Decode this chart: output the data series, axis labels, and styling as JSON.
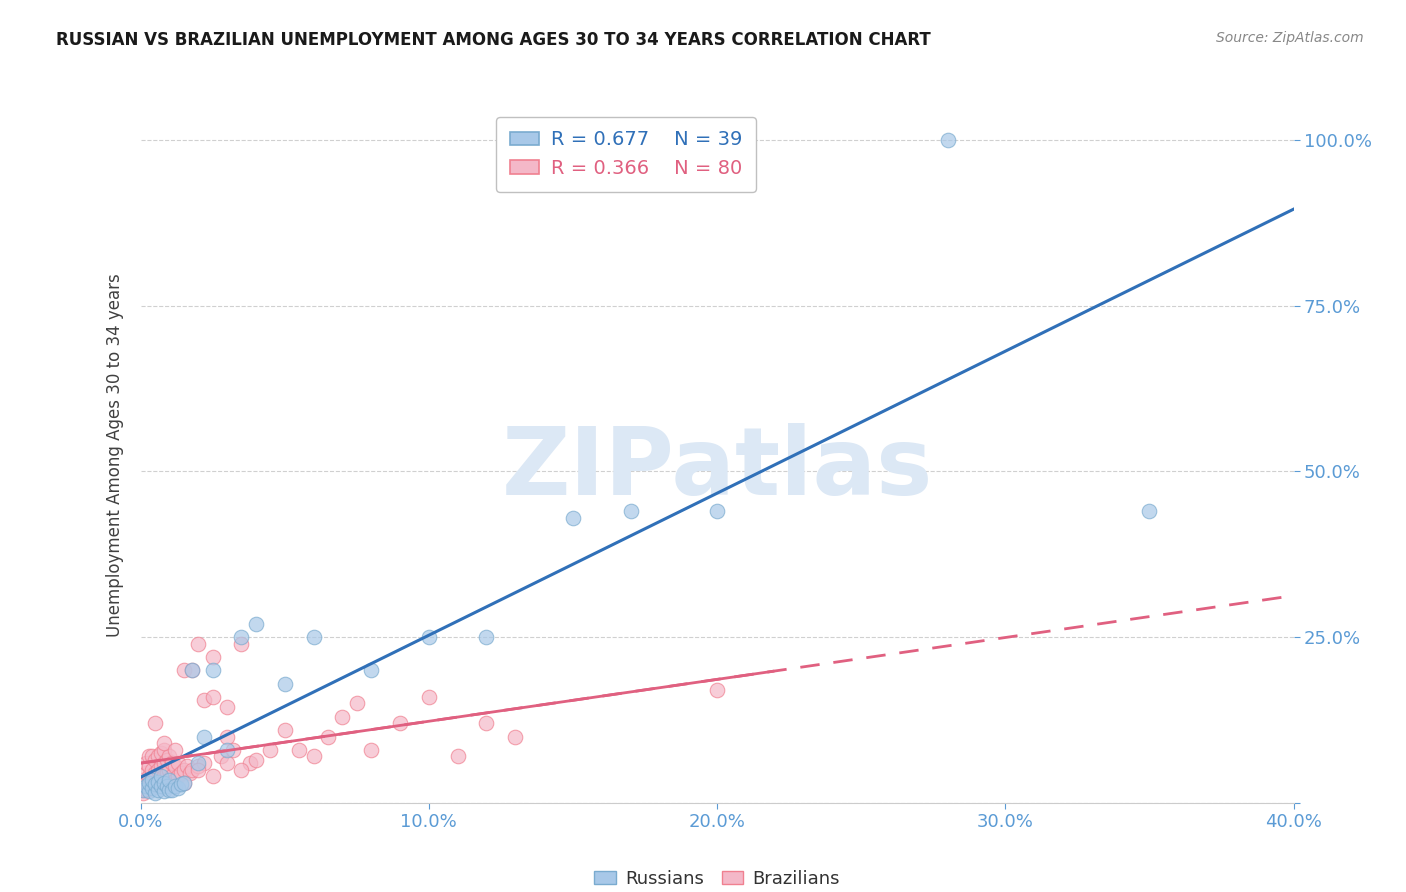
{
  "title": "RUSSIAN VS BRAZILIAN UNEMPLOYMENT AMONG AGES 30 TO 34 YEARS CORRELATION CHART",
  "source": "Source: ZipAtlas.com",
  "xmin": 0.0,
  "xmax": 0.4,
  "ymin": 0.0,
  "ymax": 1.05,
  "ylabel": "Unemployment Among Ages 30 to 34 years",
  "russian_R": 0.677,
  "russian_N": 39,
  "brazilian_R": 0.366,
  "brazilian_N": 80,
  "russian_color": "#a8c8e8",
  "russian_edge_color": "#7aabcf",
  "brazilian_color": "#f4b8c8",
  "brazilian_edge_color": "#f08090",
  "russian_line_color": "#3070b8",
  "brazilian_line_color": "#e06080",
  "watermark_text": "ZIPatlas",
  "watermark_color": "#dce8f5",
  "title_fontsize": 12,
  "source_fontsize": 10,
  "tick_color": "#5b9bd5",
  "grid_color": "#d0d0d0",
  "ylabel_color": "#404040",
  "russian_x": [
    0.001,
    0.002,
    0.003,
    0.003,
    0.004,
    0.004,
    0.005,
    0.005,
    0.006,
    0.006,
    0.007,
    0.007,
    0.008,
    0.008,
    0.009,
    0.01,
    0.01,
    0.011,
    0.012,
    0.013,
    0.014,
    0.015,
    0.018,
    0.02,
    0.022,
    0.025,
    0.03,
    0.035,
    0.04,
    0.05,
    0.06,
    0.08,
    0.1,
    0.12,
    0.15,
    0.17,
    0.2,
    0.28,
    0.35
  ],
  "russian_y": [
    0.02,
    0.025,
    0.018,
    0.03,
    0.022,
    0.035,
    0.015,
    0.028,
    0.02,
    0.032,
    0.025,
    0.04,
    0.018,
    0.03,
    0.025,
    0.02,
    0.035,
    0.02,
    0.025,
    0.022,
    0.028,
    0.03,
    0.2,
    0.06,
    0.1,
    0.2,
    0.08,
    0.25,
    0.27,
    0.18,
    0.25,
    0.2,
    0.25,
    0.25,
    0.43,
    0.44,
    0.44,
    1.0,
    0.44
  ],
  "brazilian_x": [
    0.0005,
    0.001,
    0.001,
    0.001,
    0.002,
    0.002,
    0.002,
    0.002,
    0.003,
    0.003,
    0.003,
    0.003,
    0.004,
    0.004,
    0.004,
    0.005,
    0.005,
    0.005,
    0.006,
    0.006,
    0.006,
    0.007,
    0.007,
    0.007,
    0.008,
    0.008,
    0.008,
    0.009,
    0.009,
    0.01,
    0.01,
    0.01,
    0.011,
    0.011,
    0.012,
    0.012,
    0.013,
    0.013,
    0.014,
    0.015,
    0.015,
    0.016,
    0.017,
    0.018,
    0.018,
    0.02,
    0.02,
    0.022,
    0.022,
    0.025,
    0.025,
    0.028,
    0.03,
    0.03,
    0.032,
    0.035,
    0.038,
    0.04,
    0.045,
    0.05,
    0.055,
    0.06,
    0.065,
    0.07,
    0.075,
    0.08,
    0.09,
    0.1,
    0.11,
    0.12,
    0.13,
    0.005,
    0.008,
    0.012,
    0.015,
    0.02,
    0.025,
    0.03,
    0.035,
    0.2
  ],
  "brazilian_y": [
    0.02,
    0.015,
    0.025,
    0.035,
    0.02,
    0.03,
    0.045,
    0.06,
    0.025,
    0.04,
    0.055,
    0.07,
    0.03,
    0.05,
    0.07,
    0.025,
    0.045,
    0.065,
    0.03,
    0.05,
    0.07,
    0.035,
    0.055,
    0.075,
    0.04,
    0.06,
    0.08,
    0.045,
    0.065,
    0.03,
    0.05,
    0.07,
    0.04,
    0.06,
    0.035,
    0.055,
    0.04,
    0.06,
    0.045,
    0.05,
    0.2,
    0.055,
    0.045,
    0.05,
    0.2,
    0.055,
    0.24,
    0.06,
    0.155,
    0.22,
    0.16,
    0.07,
    0.1,
    0.145,
    0.08,
    0.24,
    0.06,
    0.065,
    0.08,
    0.11,
    0.08,
    0.07,
    0.1,
    0.13,
    0.15,
    0.08,
    0.12,
    0.16,
    0.07,
    0.12,
    0.1,
    0.12,
    0.09,
    0.08,
    0.03,
    0.05,
    0.04,
    0.06,
    0.05,
    0.17
  ]
}
